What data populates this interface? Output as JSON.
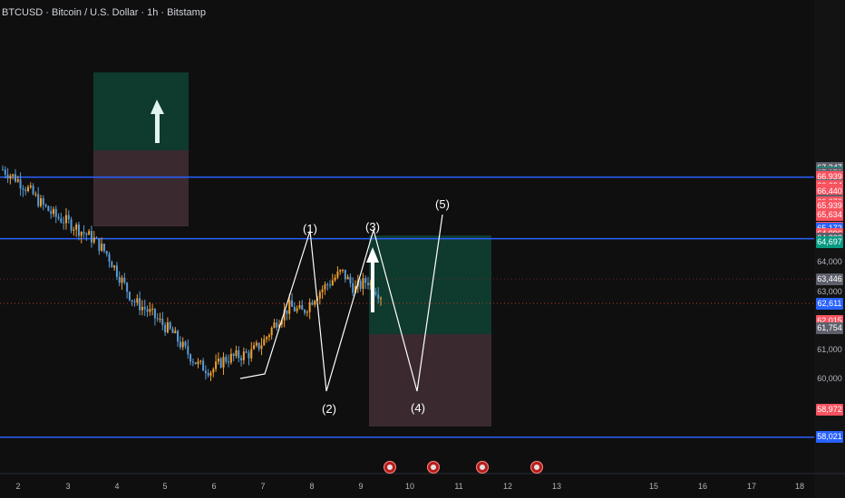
{
  "chart_title": "BTCUSD · Bitcoin / U.S. Dollar · 1h · Bitstamp",
  "colors": {
    "background": "#0f0f0f",
    "candle_up": "#f0a030",
    "candle_down": "#5b9bd5",
    "horizontal_line": "#2962ff",
    "box_profit": "#0f3a2e",
    "box_loss": "#3a2a30",
    "wave": "#ffffff",
    "label_red": "#f7525f",
    "label_gray": "#5d606b",
    "label_blue": "#2962ff",
    "label_green": "#089981"
  },
  "price_labels": [
    {
      "text": "67,247",
      "price": 67247,
      "color": "#5d606b"
    },
    {
      "text": "67,103",
      "price": 67103,
      "color": "#089981"
    },
    {
      "text": "67,070",
      "price": 67070,
      "color": "#5d606b"
    },
    {
      "text": "66,961",
      "price": 66961,
      "color": "#5d606b"
    },
    {
      "text": "66,939",
      "price": 66939,
      "color": "#f7525f"
    },
    {
      "text": "66,679",
      "price": 66679,
      "color": "#5d606b"
    },
    {
      "text": "66,634",
      "price": 66634,
      "color": "#f7525f"
    },
    {
      "text": "66,496",
      "price": 66496,
      "color": "#f7525f"
    },
    {
      "text": "66,440",
      "price": 66440,
      "color": "#f7525f"
    },
    {
      "text": "66,147",
      "price": 66147,
      "color": "#5d606b"
    },
    {
      "text": "66,076",
      "price": 66076,
      "color": "#f7525f"
    },
    {
      "text": "65,939",
      "price": 65939,
      "color": "#f7525f"
    },
    {
      "text": "65,665",
      "price": 65665,
      "color": "#f7525f"
    },
    {
      "text": "65,634",
      "price": 65634,
      "color": "#f7525f"
    },
    {
      "text": "65,219",
      "price": 65219,
      "color": "#f7525f"
    },
    {
      "text": "65,172",
      "price": 65172,
      "color": "#2962ff"
    },
    {
      "text": "64,996",
      "price": 64996,
      "color": "#f7525f"
    },
    {
      "text": "64,828",
      "price": 64828,
      "color": "#5d606b"
    },
    {
      "text": "64,697",
      "price": 64697,
      "color": "#089981"
    },
    {
      "text": "63,446",
      "price": 63446,
      "color": "#5d606b"
    },
    {
      "text": "62,611",
      "price": 62611,
      "color": "#2962ff"
    },
    {
      "text": "62,015",
      "price": 62015,
      "color": "#f7525f"
    },
    {
      "text": "61,754",
      "price": 61754,
      "color": "#5d606b"
    },
    {
      "text": "58,972",
      "price": 58972,
      "color": "#f7525f"
    },
    {
      "text": "58,021",
      "price": 58021,
      "color": "#2962ff"
    }
  ],
  "axis_prices": [
    "64,000",
    "63,000",
    "61,000",
    "60,000"
  ],
  "time_labels": [
    "2",
    "3",
    "4",
    "5",
    "6",
    "7",
    "8",
    "9",
    "10",
    "11",
    "12",
    "13",
    "15",
    "16",
    "17",
    "18"
  ],
  "wave_labels": [
    "(1)",
    "(2)",
    "(3)",
    "(4)",
    "(5)"
  ],
  "event_icons": [
    "us-flag-icon",
    "us-flag-icon",
    "us-flag-icon",
    "us-flag-icon"
  ],
  "chart_data": {
    "type": "candlestick",
    "title": "BTCUSD · Bitcoin / U.S. Dollar · 1h · Bitstamp",
    "x_ticks": [
      "2",
      "3",
      "4",
      "5",
      "6",
      "7",
      "8",
      "9",
      "10",
      "11",
      "12",
      "13",
      "15",
      "16",
      "17",
      "18"
    ],
    "y_ticks": [
      64000,
      63000,
      61000,
      60000
    ],
    "horizontal_levels": [
      66939,
      64828,
      58021
    ],
    "current_price": 62611,
    "price_path_close": [
      67200,
      66900,
      66500,
      66000,
      65600,
      65400,
      65100,
      64800,
      64300,
      63500,
      62700,
      62400,
      62000,
      61600,
      61000,
      60500,
      60300,
      60700,
      60800,
      60900,
      61300,
      62000,
      62500,
      62300,
      62900,
      63300,
      63700,
      63100,
      63400,
      62900
    ],
    "wave_points": [
      {
        "label": "(1)",
        "price": 64550
      },
      {
        "label": "(2)",
        "price": 60050
      },
      {
        "label": "(3)",
        "price": 64580
      },
      {
        "label": "(4)",
        "price": 60050
      },
      {
        "label": "(5)",
        "price": 65350
      }
    ],
    "grid": false
  }
}
